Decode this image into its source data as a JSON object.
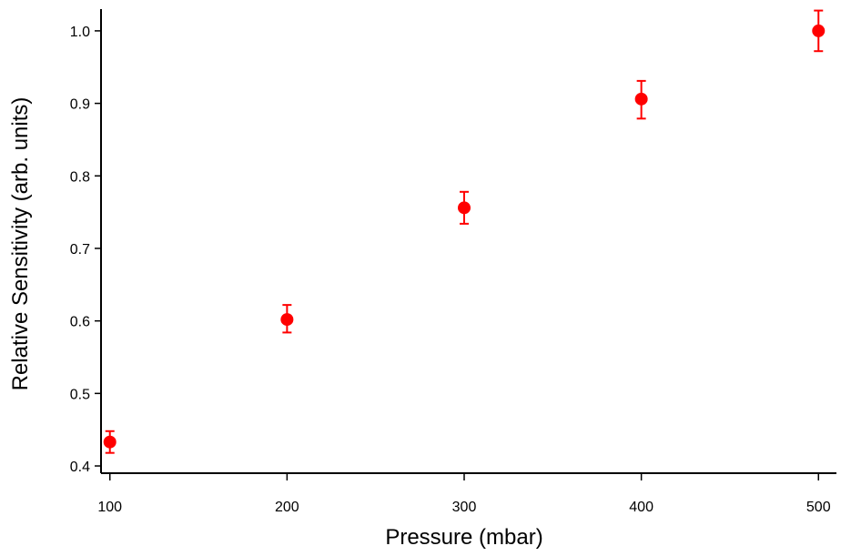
{
  "chart_data": {
    "type": "scatter",
    "title": "",
    "xlabel": "Pressure (mbar)",
    "ylabel": "Relative Sensitivity (arb. units)",
    "xlim": [
      95,
      505
    ],
    "ylim": [
      0.39,
      1.03
    ],
    "x_ticks": [
      100,
      200,
      300,
      400,
      500
    ],
    "y_ticks": [
      0.4,
      0.5,
      0.6,
      0.7,
      0.8,
      0.9,
      1.0
    ],
    "x_tick_labels": [
      "100",
      "200",
      "300",
      "400",
      "500"
    ],
    "y_tick_labels": [
      "0.4",
      "0.5",
      "0.6",
      "0.7",
      "0.8",
      "0.9",
      "1.0"
    ],
    "grid": false,
    "legend": false,
    "colors": {
      "points": "#ff0000",
      "axes": "#000000"
    },
    "series": [
      {
        "x": [
          100,
          200,
          300,
          400,
          500
        ],
        "y": [
          0.433,
          0.602,
          0.756,
          0.906,
          1.0
        ],
        "y_err_upper": [
          0.015,
          0.02,
          0.022,
          0.025,
          0.028
        ],
        "y_err_lower": [
          0.015,
          0.018,
          0.022,
          0.027,
          0.028
        ]
      }
    ]
  }
}
